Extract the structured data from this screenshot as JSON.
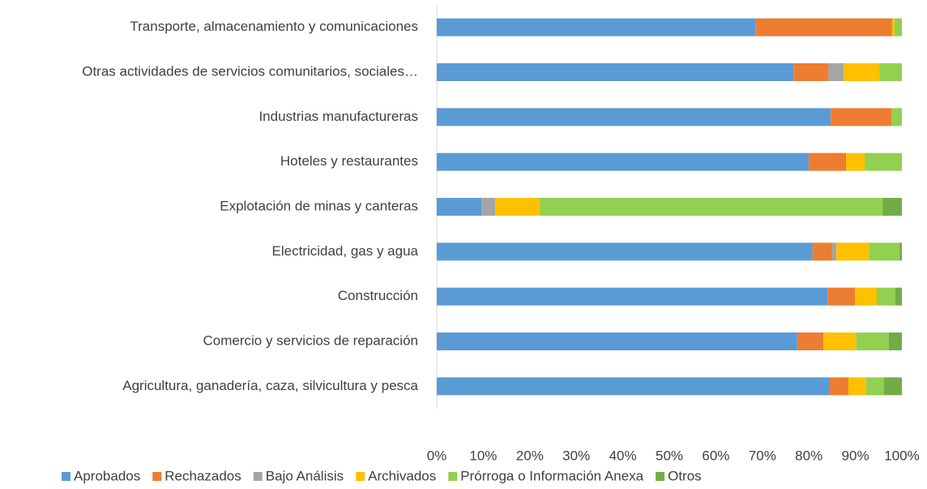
{
  "chart_data": {
    "type": "stacked_bar_horizontal",
    "categories": [
      "Transporte, almacenamiento y comunicaciones",
      "Otras actividades de servicios comunitarios, sociales…",
      "Industrias manufactureras",
      "Hoteles y restaurantes",
      "Explotación de minas y canteras",
      "Electricidad, gas y agua",
      "Construcción",
      "Comercio y servicios de reparación",
      "Agricultura, ganadería, caza, silvicultura y pesca"
    ],
    "series": [
      {
        "name": "Aprobados",
        "color": "#5b9bd5",
        "values": [
          68.5,
          76.7,
          84.7,
          80.0,
          9.6,
          80.8,
          84.0,
          77.5,
          84.5
        ]
      },
      {
        "name": "Rechazados",
        "color": "#ed7d31",
        "values": [
          29.4,
          7.5,
          13.1,
          8.0,
          0,
          4.2,
          5.9,
          5.6,
          4.0
        ]
      },
      {
        "name": "Bajo Análisis",
        "color": "#a5a5a5",
        "values": [
          0,
          3.3,
          0,
          0,
          3.0,
          0.9,
          0,
          0,
          0
        ]
      },
      {
        "name": "Archivados",
        "color": "#ffc000",
        "values": [
          0.5,
          7.7,
          0,
          4.0,
          9.6,
          7.0,
          4.7,
          7.1,
          3.8
        ]
      },
      {
        "name": "Prórroga o Información Anexa",
        "color": "#92d050",
        "values": [
          1.6,
          4.8,
          2.2,
          8.0,
          73.7,
          6.6,
          4.0,
          7.0,
          3.8
        ]
      },
      {
        "name": "Otros",
        "color": "#70ad47",
        "values": [
          0,
          0,
          0,
          0,
          4.1,
          0.5,
          1.4,
          2.8,
          3.9
        ]
      }
    ],
    "xlim": [
      0,
      100
    ],
    "xticks": [
      {
        "value": 0,
        "label": "0%"
      },
      {
        "value": 10,
        "label": "10%"
      },
      {
        "value": 20,
        "label": "20%"
      },
      {
        "value": 30,
        "label": "30%"
      },
      {
        "value": 40,
        "label": "40%"
      },
      {
        "value": 50,
        "label": "50%"
      },
      {
        "value": 60,
        "label": "60%"
      },
      {
        "value": 70,
        "label": "70%"
      },
      {
        "value": 80,
        "label": "80%"
      },
      {
        "value": 90,
        "label": "90%"
      },
      {
        "value": 100,
        "label": "100%"
      }
    ],
    "legend": "bottom"
  }
}
